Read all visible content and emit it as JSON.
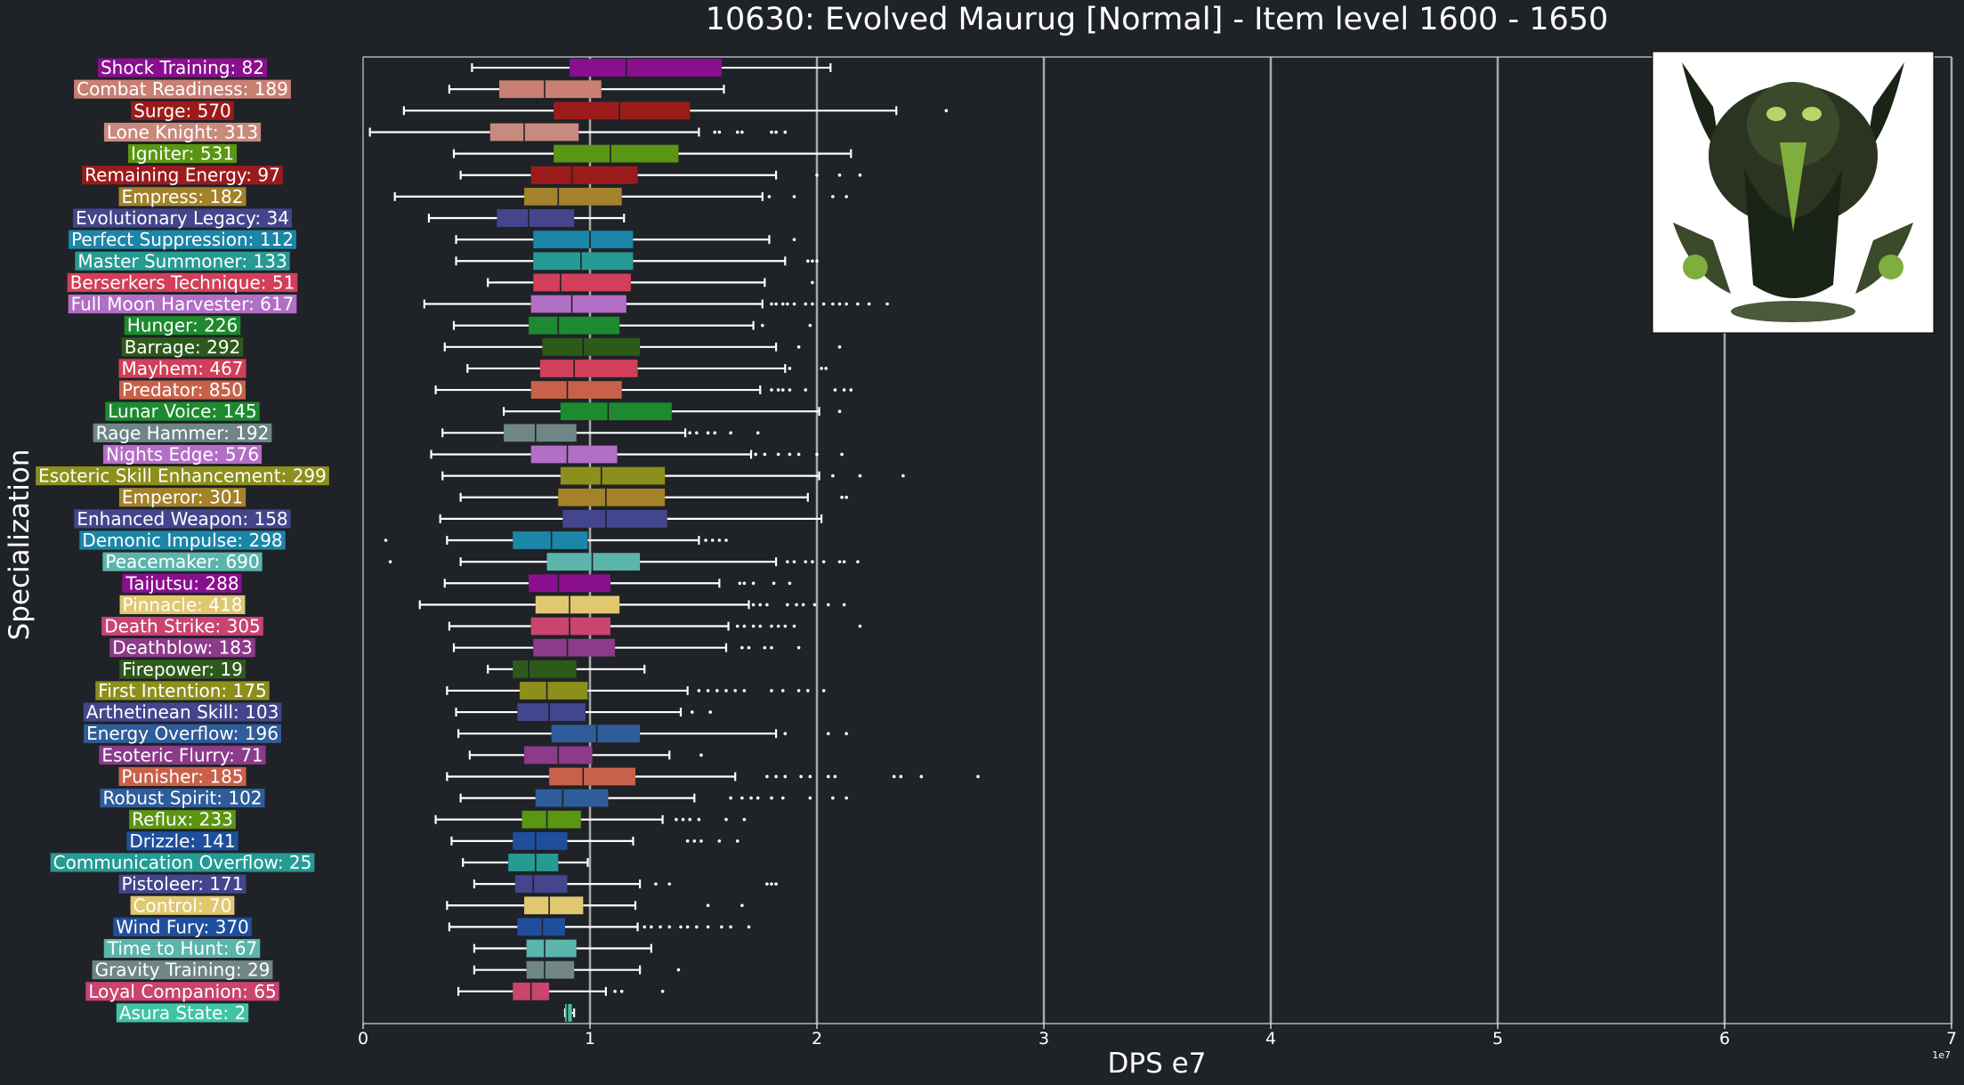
{
  "chart_data": {
    "type": "box",
    "title": "10630: Evolved Maurug [Normal] - Item level 1600 - 1650",
    "xlabel": "DPS e7",
    "ylabel": "Specialization",
    "xlim": [
      0,
      7
    ],
    "x_ticks": [
      0,
      1,
      2,
      3,
      4,
      5,
      6,
      7
    ],
    "x_tick_labels": [
      "0",
      "1",
      "2",
      "3",
      "4",
      "5",
      "6",
      "7"
    ],
    "scale_label": "1e7",
    "grid": "vertical",
    "series": [
      {
        "label": "Shock Training: 82",
        "color": "#8a0f8f",
        "whislo": 0.48,
        "q1": 0.91,
        "median": 1.16,
        "q3": 1.58,
        "whishi": 2.06,
        "fliers": []
      },
      {
        "label": "Combat Readiness: 189",
        "color": "#c97f72",
        "whislo": 0.38,
        "q1": 0.6,
        "median": 0.8,
        "q3": 1.05,
        "whishi": 1.59,
        "fliers": []
      },
      {
        "label": "Surge: 570",
        "color": "#9b1b1b",
        "whislo": 0.18,
        "q1": 0.84,
        "median": 1.13,
        "q3": 1.44,
        "whishi": 2.35,
        "fliers": [
          2.57
        ]
      },
      {
        "label": "Lone Knight: 313",
        "color": "#c98a7e",
        "whislo": 0.03,
        "q1": 0.56,
        "median": 0.71,
        "q3": 0.95,
        "whishi": 1.48,
        "fliers": [
          1.55,
          1.57,
          1.65,
          1.67,
          1.8,
          1.82,
          1.86
        ]
      },
      {
        "label": "Igniter: 531",
        "color": "#5a9612",
        "whislo": 0.4,
        "q1": 0.84,
        "median": 1.09,
        "q3": 1.39,
        "whishi": 2.15,
        "fliers": []
      },
      {
        "label": "Remaining Energy: 97",
        "color": "#9b1b1b",
        "whislo": 0.43,
        "q1": 0.74,
        "median": 0.92,
        "q3": 1.21,
        "whishi": 1.82,
        "fliers": [
          2.0,
          2.1,
          2.19
        ]
      },
      {
        "label": "Empress: 182",
        "color": "#a4822a",
        "whislo": 0.14,
        "q1": 0.71,
        "median": 0.86,
        "q3": 1.14,
        "whishi": 1.76,
        "fliers": [
          1.79,
          1.9,
          2.07,
          2.13
        ]
      },
      {
        "label": "Evolutionary Legacy: 34",
        "color": "#43468c",
        "whislo": 0.29,
        "q1": 0.59,
        "median": 0.73,
        "q3": 0.93,
        "whishi": 1.15,
        "fliers": []
      },
      {
        "label": "Perfect Suppression: 112",
        "color": "#1b86a8",
        "whislo": 0.41,
        "q1": 0.75,
        "median": 1.0,
        "q3": 1.19,
        "whishi": 1.79,
        "fliers": [
          1.9
        ]
      },
      {
        "label": "Master Summoner: 133",
        "color": "#259b94",
        "whislo": 0.41,
        "q1": 0.75,
        "median": 0.96,
        "q3": 1.19,
        "whishi": 1.86,
        "fliers": [
          1.96,
          1.98,
          2.0
        ]
      },
      {
        "label": "Berserkers Technique: 51",
        "color": "#d13f5a",
        "whislo": 0.55,
        "q1": 0.75,
        "median": 0.87,
        "q3": 1.18,
        "whishi": 1.77,
        "fliers": [
          1.98
        ]
      },
      {
        "label": "Full Moon Harvester: 617",
        "color": "#b36ec6",
        "whislo": 0.27,
        "q1": 0.74,
        "median": 0.92,
        "q3": 1.16,
        "whishi": 1.76,
        "fliers": [
          1.8,
          1.82,
          1.85,
          1.87,
          1.9,
          1.95,
          1.98,
          2.03,
          2.07,
          2.1,
          2.13,
          2.18,
          2.23,
          2.31
        ]
      },
      {
        "label": "Hunger: 226",
        "color": "#1d8a2f",
        "whislo": 0.4,
        "q1": 0.73,
        "median": 0.86,
        "q3": 1.13,
        "whishi": 1.72,
        "fliers": [
          1.76,
          1.97
        ]
      },
      {
        "label": "Barrage: 292",
        "color": "#2d5a1b",
        "whislo": 0.36,
        "q1": 0.79,
        "median": 0.97,
        "q3": 1.22,
        "whishi": 1.82,
        "fliers": [
          1.92,
          2.1
        ]
      },
      {
        "label": "Mayhem: 467",
        "color": "#d13f5a",
        "whislo": 0.46,
        "q1": 0.78,
        "median": 0.93,
        "q3": 1.21,
        "whishi": 1.86,
        "fliers": [
          1.88,
          2.02,
          2.04
        ]
      },
      {
        "label": "Predator: 850",
        "color": "#c9614a",
        "whislo": 0.32,
        "q1": 0.74,
        "median": 0.9,
        "q3": 1.14,
        "whishi": 1.75,
        "fliers": [
          1.8,
          1.83,
          1.85,
          1.88,
          1.95,
          2.08,
          2.12,
          2.15
        ]
      },
      {
        "label": "Lunar Voice: 145",
        "color": "#1d8a2f",
        "whislo": 0.62,
        "q1": 0.87,
        "median": 1.08,
        "q3": 1.36,
        "whishi": 2.01,
        "fliers": [
          2.1
        ]
      },
      {
        "label": "Rage Hammer: 192",
        "color": "#6f8586",
        "whislo": 0.35,
        "q1": 0.62,
        "median": 0.76,
        "q3": 0.94,
        "whishi": 1.42,
        "fliers": [
          1.44,
          1.47,
          1.52,
          1.55,
          1.62,
          1.74
        ]
      },
      {
        "label": "Nights Edge: 576",
        "color": "#b36ec6",
        "whislo": 0.3,
        "q1": 0.74,
        "median": 0.9,
        "q3": 1.12,
        "whishi": 1.71,
        "fliers": [
          1.73,
          1.77,
          1.83,
          1.88,
          1.92,
          2.0,
          2.11
        ]
      },
      {
        "label": "Esoteric Skill Enhancement: 299",
        "color": "#8c8f1b",
        "whislo": 0.35,
        "q1": 0.87,
        "median": 1.05,
        "q3": 1.33,
        "whishi": 2.01,
        "fliers": [
          2.07,
          2.19,
          2.38
        ]
      },
      {
        "label": "Emperor: 301",
        "color": "#a4822a",
        "whislo": 0.43,
        "q1": 0.86,
        "median": 1.07,
        "q3": 1.33,
        "whishi": 1.96,
        "fliers": [
          2.11,
          2.13
        ]
      },
      {
        "label": "Enhanced Weapon: 158",
        "color": "#43468c",
        "whislo": 0.34,
        "q1": 0.88,
        "median": 1.07,
        "q3": 1.34,
        "whishi": 2.02,
        "fliers": []
      },
      {
        "label": "Demonic Impulse: 298",
        "color": "#1b86a8",
        "whislo": 0.37,
        "q1": 0.66,
        "median": 0.83,
        "q3": 0.99,
        "whishi": 1.48,
        "fliers": [
          0.1,
          1.51,
          1.54,
          1.57,
          1.6
        ]
      },
      {
        "label": "Peacemaker: 690",
        "color": "#5cb5ad",
        "whislo": 0.43,
        "q1": 0.81,
        "median": 1.01,
        "q3": 1.22,
        "whishi": 1.82,
        "fliers": [
          0.12,
          1.87,
          1.9,
          1.95,
          1.98,
          2.03,
          2.1,
          2.12,
          2.18
        ]
      },
      {
        "label": "Taijutsu: 288",
        "color": "#8a0f8f",
        "whislo": 0.36,
        "q1": 0.73,
        "median": 0.86,
        "q3": 1.09,
        "whishi": 1.57,
        "fliers": [
          1.66,
          1.68,
          1.72,
          1.81,
          1.88
        ]
      },
      {
        "label": "Pinnacle: 418",
        "color": "#e0c870",
        "whislo": 0.25,
        "q1": 0.76,
        "median": 0.91,
        "q3": 1.13,
        "whishi": 1.7,
        "fliers": [
          1.72,
          1.75,
          1.78,
          1.87,
          1.91,
          1.94,
          1.99,
          2.05,
          2.12
        ]
      },
      {
        "label": "Death Strike: 305",
        "color": "#c9446e",
        "whislo": 0.38,
        "q1": 0.74,
        "median": 0.91,
        "q3": 1.09,
        "whishi": 1.61,
        "fliers": [
          1.65,
          1.68,
          1.72,
          1.75,
          1.8,
          1.83,
          1.86,
          1.9,
          2.19
        ]
      },
      {
        "label": "Deathblow: 183",
        "color": "#8c3a8a",
        "whislo": 0.4,
        "q1": 0.75,
        "median": 0.9,
        "q3": 1.11,
        "whishi": 1.6,
        "fliers": [
          1.67,
          1.7,
          1.77,
          1.8,
          1.92
        ]
      },
      {
        "label": "Firepower: 19",
        "color": "#2d5a1b",
        "whislo": 0.55,
        "q1": 0.66,
        "median": 0.73,
        "q3": 0.94,
        "whishi": 1.24,
        "fliers": []
      },
      {
        "label": "First Intention: 175",
        "color": "#8c8f1b",
        "whislo": 0.37,
        "q1": 0.69,
        "median": 0.81,
        "q3": 0.99,
        "whishi": 1.43,
        "fliers": [
          1.48,
          1.52,
          1.56,
          1.6,
          1.64,
          1.68,
          1.8,
          1.85,
          1.92,
          1.96,
          2.03
        ]
      },
      {
        "label": "Arthetinean Skill: 103",
        "color": "#43468c",
        "whislo": 0.41,
        "q1": 0.68,
        "median": 0.82,
        "q3": 0.98,
        "whishi": 1.4,
        "fliers": [
          1.45,
          1.53
        ]
      },
      {
        "label": "Energy Overflow: 196",
        "color": "#2f5c9a",
        "whislo": 0.42,
        "q1": 0.83,
        "median": 1.03,
        "q3": 1.22,
        "whishi": 1.82,
        "fliers": [
          1.86,
          2.05,
          2.13
        ]
      },
      {
        "label": "Esoteric Flurry: 71",
        "color": "#8c3a8a",
        "whislo": 0.47,
        "q1": 0.71,
        "median": 0.86,
        "q3": 1.01,
        "whishi": 1.35,
        "fliers": [
          1.49
        ]
      },
      {
        "label": "Punisher: 185",
        "color": "#c9614a",
        "whislo": 0.37,
        "q1": 0.82,
        "median": 0.97,
        "q3": 1.2,
        "whishi": 1.64,
        "fliers": [
          1.78,
          1.82,
          1.86,
          1.93,
          1.97,
          2.05,
          2.08,
          2.34,
          2.37,
          2.46,
          2.71
        ]
      },
      {
        "label": "Robust Spirit: 102",
        "color": "#2f5c9a",
        "whislo": 0.43,
        "q1": 0.76,
        "median": 0.88,
        "q3": 1.08,
        "whishi": 1.46,
        "fliers": [
          1.62,
          1.67,
          1.71,
          1.74,
          1.8,
          1.85,
          1.97,
          2.07,
          2.13
        ]
      },
      {
        "label": "Reflux: 233",
        "color": "#5a9612",
        "whislo": 0.32,
        "q1": 0.7,
        "median": 0.81,
        "q3": 0.96,
        "whishi": 1.32,
        "fliers": [
          1.38,
          1.41,
          1.44,
          1.48,
          1.6,
          1.68
        ]
      },
      {
        "label": "Drizzle: 141",
        "color": "#1f4f9c",
        "whislo": 0.39,
        "q1": 0.66,
        "median": 0.76,
        "q3": 0.9,
        "whishi": 1.19,
        "fliers": [
          1.43,
          1.46,
          1.49,
          1.57,
          1.65
        ]
      },
      {
        "label": "Communication Overflow: 25",
        "color": "#259b94",
        "whislo": 0.44,
        "q1": 0.64,
        "median": 0.76,
        "q3": 0.86,
        "whishi": 0.99,
        "fliers": []
      },
      {
        "label": "Pistoleer: 171",
        "color": "#43468c",
        "whislo": 0.49,
        "q1": 0.67,
        "median": 0.75,
        "q3": 0.9,
        "whishi": 1.22,
        "fliers": [
          1.29,
          1.35,
          1.78,
          1.8,
          1.82
        ]
      },
      {
        "label": "Control: 70",
        "color": "#e0c870",
        "whislo": 0.37,
        "q1": 0.71,
        "median": 0.82,
        "q3": 0.97,
        "whishi": 1.2,
        "fliers": [
          1.52,
          1.67
        ]
      },
      {
        "label": "Wind Fury: 370",
        "color": "#1f4f9c",
        "whislo": 0.38,
        "q1": 0.68,
        "median": 0.79,
        "q3": 0.89,
        "whishi": 1.21,
        "fliers": [
          1.24,
          1.27,
          1.31,
          1.35,
          1.4,
          1.43,
          1.47,
          1.52,
          1.58,
          1.62,
          1.7
        ]
      },
      {
        "label": "Time to Hunt: 67",
        "color": "#5cb5ad",
        "whislo": 0.49,
        "q1": 0.72,
        "median": 0.8,
        "q3": 0.94,
        "whishi": 1.27,
        "fliers": []
      },
      {
        "label": "Gravity Training: 29",
        "color": "#6f8586",
        "whislo": 0.49,
        "q1": 0.72,
        "median": 0.8,
        "q3": 0.93,
        "whishi": 1.22,
        "fliers": [
          1.39
        ]
      },
      {
        "label": "Loyal Companion: 65",
        "color": "#c9446e",
        "whislo": 0.42,
        "q1": 0.66,
        "median": 0.74,
        "q3": 0.82,
        "whishi": 1.07,
        "fliers": [
          1.11,
          1.14,
          1.32
        ]
      },
      {
        "label": "Asura State: 2",
        "color": "#3fc4a5",
        "whislo": 0.89,
        "q1": 0.89,
        "median": 0.9,
        "q3": 0.92,
        "whishi": 0.93,
        "fliers": []
      }
    ]
  },
  "image": {
    "name": "evolved-maurug-portrait",
    "border": "#ffffff",
    "colors": [
      "#1a2416",
      "#3a4a2a",
      "#7fae3e",
      "#b8d46a"
    ]
  },
  "colors": {
    "background": "#1f2227",
    "grid": "#a8a8a8",
    "whisker": "#ffffff"
  }
}
